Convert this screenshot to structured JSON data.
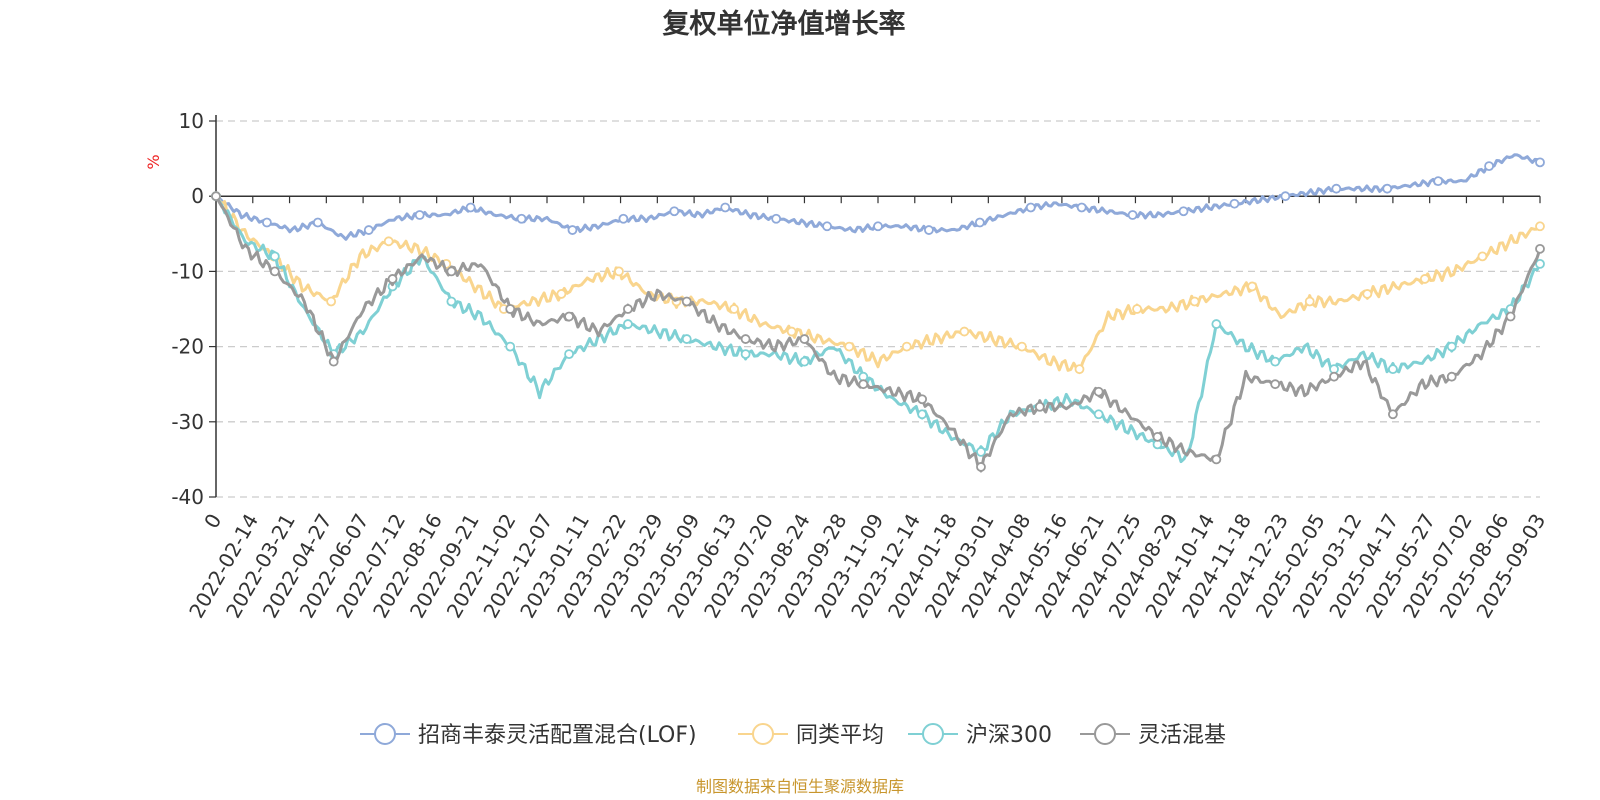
{
  "chart_data": {
    "type": "line",
    "title": "复权单位净值增长率",
    "ylabel": "%",
    "ylim": [
      -40,
      10
    ],
    "yticks": [
      "10",
      "0",
      "-10",
      "-20",
      "-30",
      "-40"
    ],
    "x_start_label": "0",
    "x_tick_labels": [
      "2022-02-14",
      "2022-03-21",
      "2022-04-27",
      "2022-06-07",
      "2022-07-12",
      "2022-08-16",
      "2022-09-21",
      "2022-11-02",
      "2022-12-07",
      "2023-01-11",
      "2023-02-22",
      "2023-03-29",
      "2023-05-09",
      "2023-06-13",
      "2023-07-20",
      "2023-08-24",
      "2023-09-28",
      "2023-11-09",
      "2023-12-14",
      "2024-01-18",
      "2024-03-01",
      "2024-04-08",
      "2024-05-16",
      "2024-06-21",
      "2024-07-25",
      "2024-08-29",
      "2024-10-14",
      "2024-11-18",
      "2024-12-23",
      "2025-02-05",
      "2025-03-12",
      "2025-04-17",
      "2025-05-27",
      "2025-07-02",
      "2025-08-06",
      "2025-09-03"
    ],
    "grid": true,
    "legend_position": "bottom",
    "series": [
      {
        "name": "招商丰泰灵活配置混合(LOF)",
        "color": "#8fa9d9",
        "values": [
          0,
          -2.5,
          -3.5,
          -4.5,
          -3.5,
          -5.5,
          -4.5,
          -3,
          -2.5,
          -2.5,
          -1.5,
          -2.5,
          -3,
          -3,
          -4.5,
          -4,
          -3,
          -3,
          -2,
          -2.5,
          -1.5,
          -2.5,
          -3,
          -3.5,
          -4,
          -4.5,
          -4,
          -4,
          -4.5,
          -4.5,
          -3.5,
          -2.5,
          -1.5,
          -1,
          -1.5,
          -2,
          -2.5,
          -2.5,
          -2,
          -1.5,
          -1,
          -0.5,
          0,
          0.5,
          1,
          1,
          1,
          1.5,
          2,
          2,
          4,
          5.5,
          4.5
        ]
      },
      {
        "name": "同类平均",
        "color": "#f9d58e",
        "values": [
          0,
          -5,
          -8,
          -12,
          -14,
          -8,
          -6,
          -7,
          -9,
          -12,
          -15,
          -14,
          -13,
          -11,
          -10,
          -13,
          -14,
          -14,
          -15,
          -17,
          -18,
          -19,
          -20,
          -22,
          -20,
          -19,
          -18,
          -19,
          -20,
          -22,
          -23,
          -16,
          -15,
          -15,
          -14,
          -13,
          -12,
          -16,
          -14,
          -14,
          -13,
          -12,
          -11,
          -10,
          -8,
          -6,
          -4
        ]
      },
      {
        "name": "沪深300",
        "color": "#7fd0d4",
        "values": [
          0,
          -6,
          -8,
          -15,
          -21,
          -18,
          -12,
          -8,
          -14,
          -16,
          -20,
          -26,
          -21,
          -19,
          -17,
          -18,
          -19,
          -20,
          -21,
          -21,
          -22,
          -20,
          -24,
          -27,
          -29,
          -32,
          -34,
          -29,
          -28,
          -27,
          -29,
          -31,
          -33,
          -35,
          -17,
          -20,
          -22,
          -20,
          -23,
          -21,
          -23,
          -22,
          -20,
          -17,
          -15,
          -9
        ]
      },
      {
        "name": "灵活混基",
        "color": "#999999",
        "values": [
          0,
          -7,
          -10,
          -14,
          -22,
          -15,
          -11,
          -8,
          -10,
          -9,
          -15,
          -17,
          -16,
          -18,
          -15,
          -13,
          -14,
          -17,
          -19,
          -20,
          -19,
          -24,
          -25,
          -26,
          -27,
          -31,
          -36,
          -29,
          -28,
          -28,
          -26,
          -29,
          -32,
          -34,
          -35,
          -24,
          -25,
          -26,
          -24,
          -22,
          -29,
          -25,
          -24,
          -21,
          -16,
          -7
        ]
      }
    ]
  },
  "source_text": "制图数据来自恒生聚源数据库"
}
